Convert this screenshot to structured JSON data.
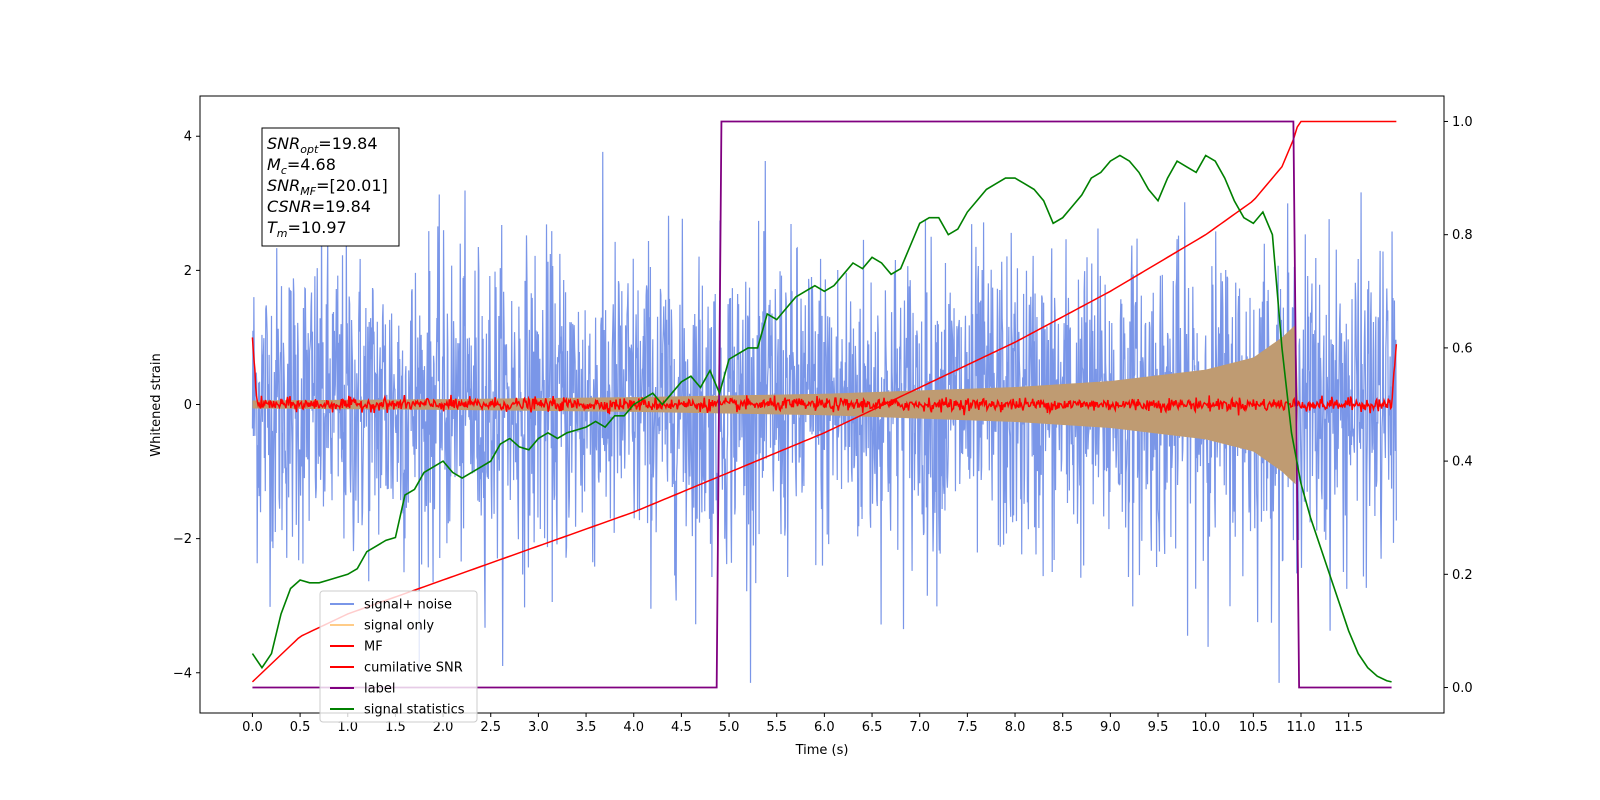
{
  "chart_data": {
    "type": "line",
    "xlabel": "Time (s)",
    "ylabel": "Whitened strain",
    "xlim": [
      -0.55,
      12.5
    ],
    "ylim": [
      -4.6,
      4.6
    ],
    "y2lim": [
      -0.045,
      1.045
    ],
    "x_ticks": [
      "0.0",
      "0.5",
      "1.0",
      "1.5",
      "2.0",
      "2.5",
      "3.0",
      "3.5",
      "4.0",
      "4.5",
      "5.0",
      "5.5",
      "6.0",
      "6.5",
      "7.0",
      "7.5",
      "8.0",
      "8.5",
      "9.0",
      "9.5",
      "10.0",
      "10.5",
      "11.0",
      "11.5"
    ],
    "y_ticks": [
      "-4",
      "-2",
      "0",
      "2",
      "4"
    ],
    "y2_ticks": [
      "0.0",
      "0.2",
      "0.4",
      "0.6",
      "0.8",
      "1.0"
    ],
    "legend_position": "lower-left",
    "annotation": {
      "snr_opt": {
        "label": "SNR",
        "sub": "opt",
        "value": "=19.84"
      },
      "mc": {
        "label": "M",
        "sub": "c",
        "value": "=4.68"
      },
      "snr_mf": {
        "label": "SNR",
        "sub": "MF",
        "value": "=[20.01]"
      },
      "csnr": {
        "label": "CSNR",
        "value": "=19.84"
      },
      "tm": {
        "label": "T",
        "sub": "m",
        "value": "=10.97"
      }
    },
    "series": [
      {
        "name": "signal+ noise",
        "color": "#7a96e8",
        "axis": "left",
        "envelope": {
          "x": [
            0.0,
            12.0
          ],
          "typical_amplitude": 1.6,
          "peak_max": 4.15,
          "peak_min": -4.15
        }
      },
      {
        "name": "signal only",
        "color": "#ffcc88",
        "fill_color": "#bf9b72",
        "axis": "left",
        "envelope_x": [
          0.0,
          2.0,
          4.0,
          6.0,
          8.0,
          9.0,
          10.0,
          10.5,
          10.8,
          10.95,
          10.97
        ],
        "envelope_amp": [
          0.06,
          0.08,
          0.11,
          0.16,
          0.26,
          0.35,
          0.52,
          0.7,
          1.0,
          1.2,
          0.0
        ]
      },
      {
        "name": "MF",
        "color": "#ff0000",
        "axis": "left",
        "x_span": [
          0.0,
          12.0
        ],
        "typical_amplitude": 0.08,
        "edge_values": {
          "start": 1.0,
          "end": 0.9
        }
      },
      {
        "name": "cumilative SNR",
        "color": "#ff0000",
        "axis": "right",
        "x": [
          0.0,
          0.5,
          1.0,
          2.0,
          3.0,
          4.0,
          5.0,
          6.0,
          7.0,
          8.0,
          9.0,
          10.0,
          10.5,
          10.8,
          10.95,
          10.97,
          12.0
        ],
        "y": [
          0.01,
          0.09,
          0.13,
          0.19,
          0.25,
          0.31,
          0.38,
          0.45,
          0.53,
          0.61,
          0.7,
          0.8,
          0.86,
          0.92,
          0.98,
          1.0,
          1.0
        ]
      },
      {
        "name": "label",
        "color": "#800080",
        "axis": "right",
        "x": [
          0.0,
          4.87,
          4.92,
          10.92,
          10.98,
          11.95
        ],
        "y": [
          0.0,
          0.0,
          1.0,
          1.0,
          0.0,
          0.0
        ]
      },
      {
        "name": "signal statistics",
        "color": "#008000",
        "axis": "right",
        "x": [
          0.0,
          0.1,
          0.2,
          0.3,
          0.4,
          0.5,
          0.6,
          0.7,
          0.8,
          0.9,
          1.0,
          1.1,
          1.2,
          1.3,
          1.4,
          1.5,
          1.6,
          1.7,
          1.8,
          1.9,
          2.0,
          2.1,
          2.2,
          2.3,
          2.4,
          2.5,
          2.6,
          2.7,
          2.8,
          2.9,
          3.0,
          3.1,
          3.2,
          3.3,
          3.4,
          3.5,
          3.6,
          3.7,
          3.8,
          3.9,
          4.0,
          4.1,
          4.2,
          4.3,
          4.4,
          4.5,
          4.6,
          4.7,
          4.8,
          4.9,
          5.0,
          5.1,
          5.2,
          5.3,
          5.4,
          5.5,
          5.6,
          5.7,
          5.8,
          5.9,
          6.0,
          6.1,
          6.2,
          6.3,
          6.4,
          6.5,
          6.6,
          6.7,
          6.8,
          6.9,
          7.0,
          7.1,
          7.2,
          7.3,
          7.4,
          7.5,
          7.6,
          7.7,
          7.8,
          7.9,
          8.0,
          8.1,
          8.2,
          8.3,
          8.4,
          8.5,
          8.6,
          8.7,
          8.8,
          8.9,
          9.0,
          9.1,
          9.2,
          9.3,
          9.4,
          9.5,
          9.6,
          9.7,
          9.8,
          9.9,
          10.0,
          10.1,
          10.2,
          10.3,
          10.4,
          10.5,
          10.6,
          10.7,
          10.8,
          10.9,
          11.0,
          11.1,
          11.2,
          11.3,
          11.4,
          11.5,
          11.6,
          11.7,
          11.8,
          11.9,
          11.95
        ],
        "y": [
          0.06,
          0.035,
          0.06,
          0.13,
          0.175,
          0.19,
          0.185,
          0.185,
          0.19,
          0.195,
          0.2,
          0.21,
          0.24,
          0.25,
          0.26,
          0.265,
          0.34,
          0.35,
          0.38,
          0.39,
          0.4,
          0.38,
          0.37,
          0.38,
          0.39,
          0.4,
          0.43,
          0.44,
          0.425,
          0.42,
          0.44,
          0.45,
          0.44,
          0.45,
          0.455,
          0.46,
          0.47,
          0.46,
          0.48,
          0.48,
          0.5,
          0.51,
          0.52,
          0.5,
          0.52,
          0.54,
          0.55,
          0.53,
          0.56,
          0.52,
          0.58,
          0.59,
          0.6,
          0.6,
          0.66,
          0.65,
          0.67,
          0.69,
          0.7,
          0.71,
          0.7,
          0.71,
          0.73,
          0.75,
          0.74,
          0.76,
          0.75,
          0.73,
          0.74,
          0.78,
          0.82,
          0.83,
          0.83,
          0.8,
          0.81,
          0.84,
          0.86,
          0.88,
          0.89,
          0.9,
          0.9,
          0.89,
          0.88,
          0.86,
          0.82,
          0.83,
          0.85,
          0.87,
          0.9,
          0.91,
          0.93,
          0.94,
          0.93,
          0.91,
          0.88,
          0.86,
          0.9,
          0.93,
          0.92,
          0.91,
          0.94,
          0.93,
          0.9,
          0.86,
          0.83,
          0.82,
          0.84,
          0.8,
          0.6,
          0.45,
          0.36,
          0.3,
          0.25,
          0.2,
          0.15,
          0.1,
          0.06,
          0.035,
          0.02,
          0.012,
          0.01
        ]
      }
    ]
  }
}
